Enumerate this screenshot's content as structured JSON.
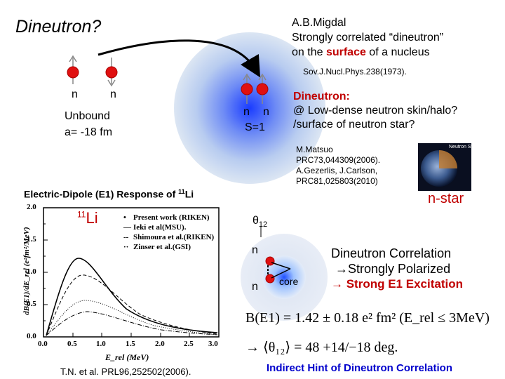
{
  "header": {
    "title": "Dineutron?",
    "ref_author": "A.B.Migdal",
    "ref_line2": "Strongly correlated “dineutron”",
    "ref_line3_pre": "on the ",
    "ref_line3_hl": "surface",
    "ref_line3_post": " of a nucleus",
    "ref_journal": "Sov.J.Nucl.Phys.238(1973)."
  },
  "free_pair": {
    "n1": "n",
    "n2": "n",
    "unbound": "Unbound",
    "scattering": "a= -18 fm"
  },
  "bound_pair": {
    "n1": "n",
    "n2": "n",
    "spin": "S=1"
  },
  "dineutron_box": {
    "title": "Dineutron:",
    "line1": "@ Low-dense neutron skin/halo?",
    "line2": "/surface of neutron star?"
  },
  "refs": {
    "line1": "M.Matsuo",
    "line2": "PRC73,044309(2006).",
    "line3": "A.Gezerlis, J.Carlson,",
    "line4": "PRC81,025803(2010)"
  },
  "neutron_star": {
    "label": "n-star",
    "thumb_text": "Neutron Star"
  },
  "e1_section": {
    "title": "Electric-Dipole (E1) Response of ",
    "nucleus_mass": "11",
    "nucleus_sym": "Li"
  },
  "plot": {
    "nucleus_mass": "11",
    "nucleus_sym": "Li",
    "ylabel": "dB(E1)/dE_rel (e²fm²/MeV)",
    "xlabel": "E_rel  (MeV)",
    "y_ticks": [
      "2.0",
      "1.5",
      "1.0",
      "0.5",
      "0.0"
    ],
    "x_ticks": [
      "0.0",
      "0.5",
      "1.0",
      "1.5",
      "2.0",
      "2.5",
      "3.0"
    ],
    "legend": [
      {
        "label": "Present work (RIKEN)"
      },
      {
        "label": "Ieki et al(MSU)."
      },
      {
        "label": "Shimoura et al.(RIKEN)"
      },
      {
        "label": "Zinser et al.(GSI)"
      }
    ]
  },
  "plot_ref": "T.N. et al. PRL96,252502(2006).",
  "correlation": {
    "theta": "θ",
    "theta_sub": "12",
    "n1": "n",
    "n2": "n",
    "core": "core",
    "line1": "Dineutron Correlation",
    "line2": "→Strongly Polarized",
    "line3": "→ Strong E1 Excitation"
  },
  "formulas": {
    "be1": "B(E1) = 1.42 ± 0.18 e² fm² (E_rel ≤ 3MeV)",
    "theta": "→ ⟨θ₁₂⟩ = 48 +14/−18 deg."
  },
  "footer": "Indirect Hint of Dineutron Correlation",
  "colors": {
    "neutron_red": "#e01010",
    "dark_red": "#c00000",
    "blue": "#0000cc",
    "nucleus_blue": "#1a3cff"
  }
}
